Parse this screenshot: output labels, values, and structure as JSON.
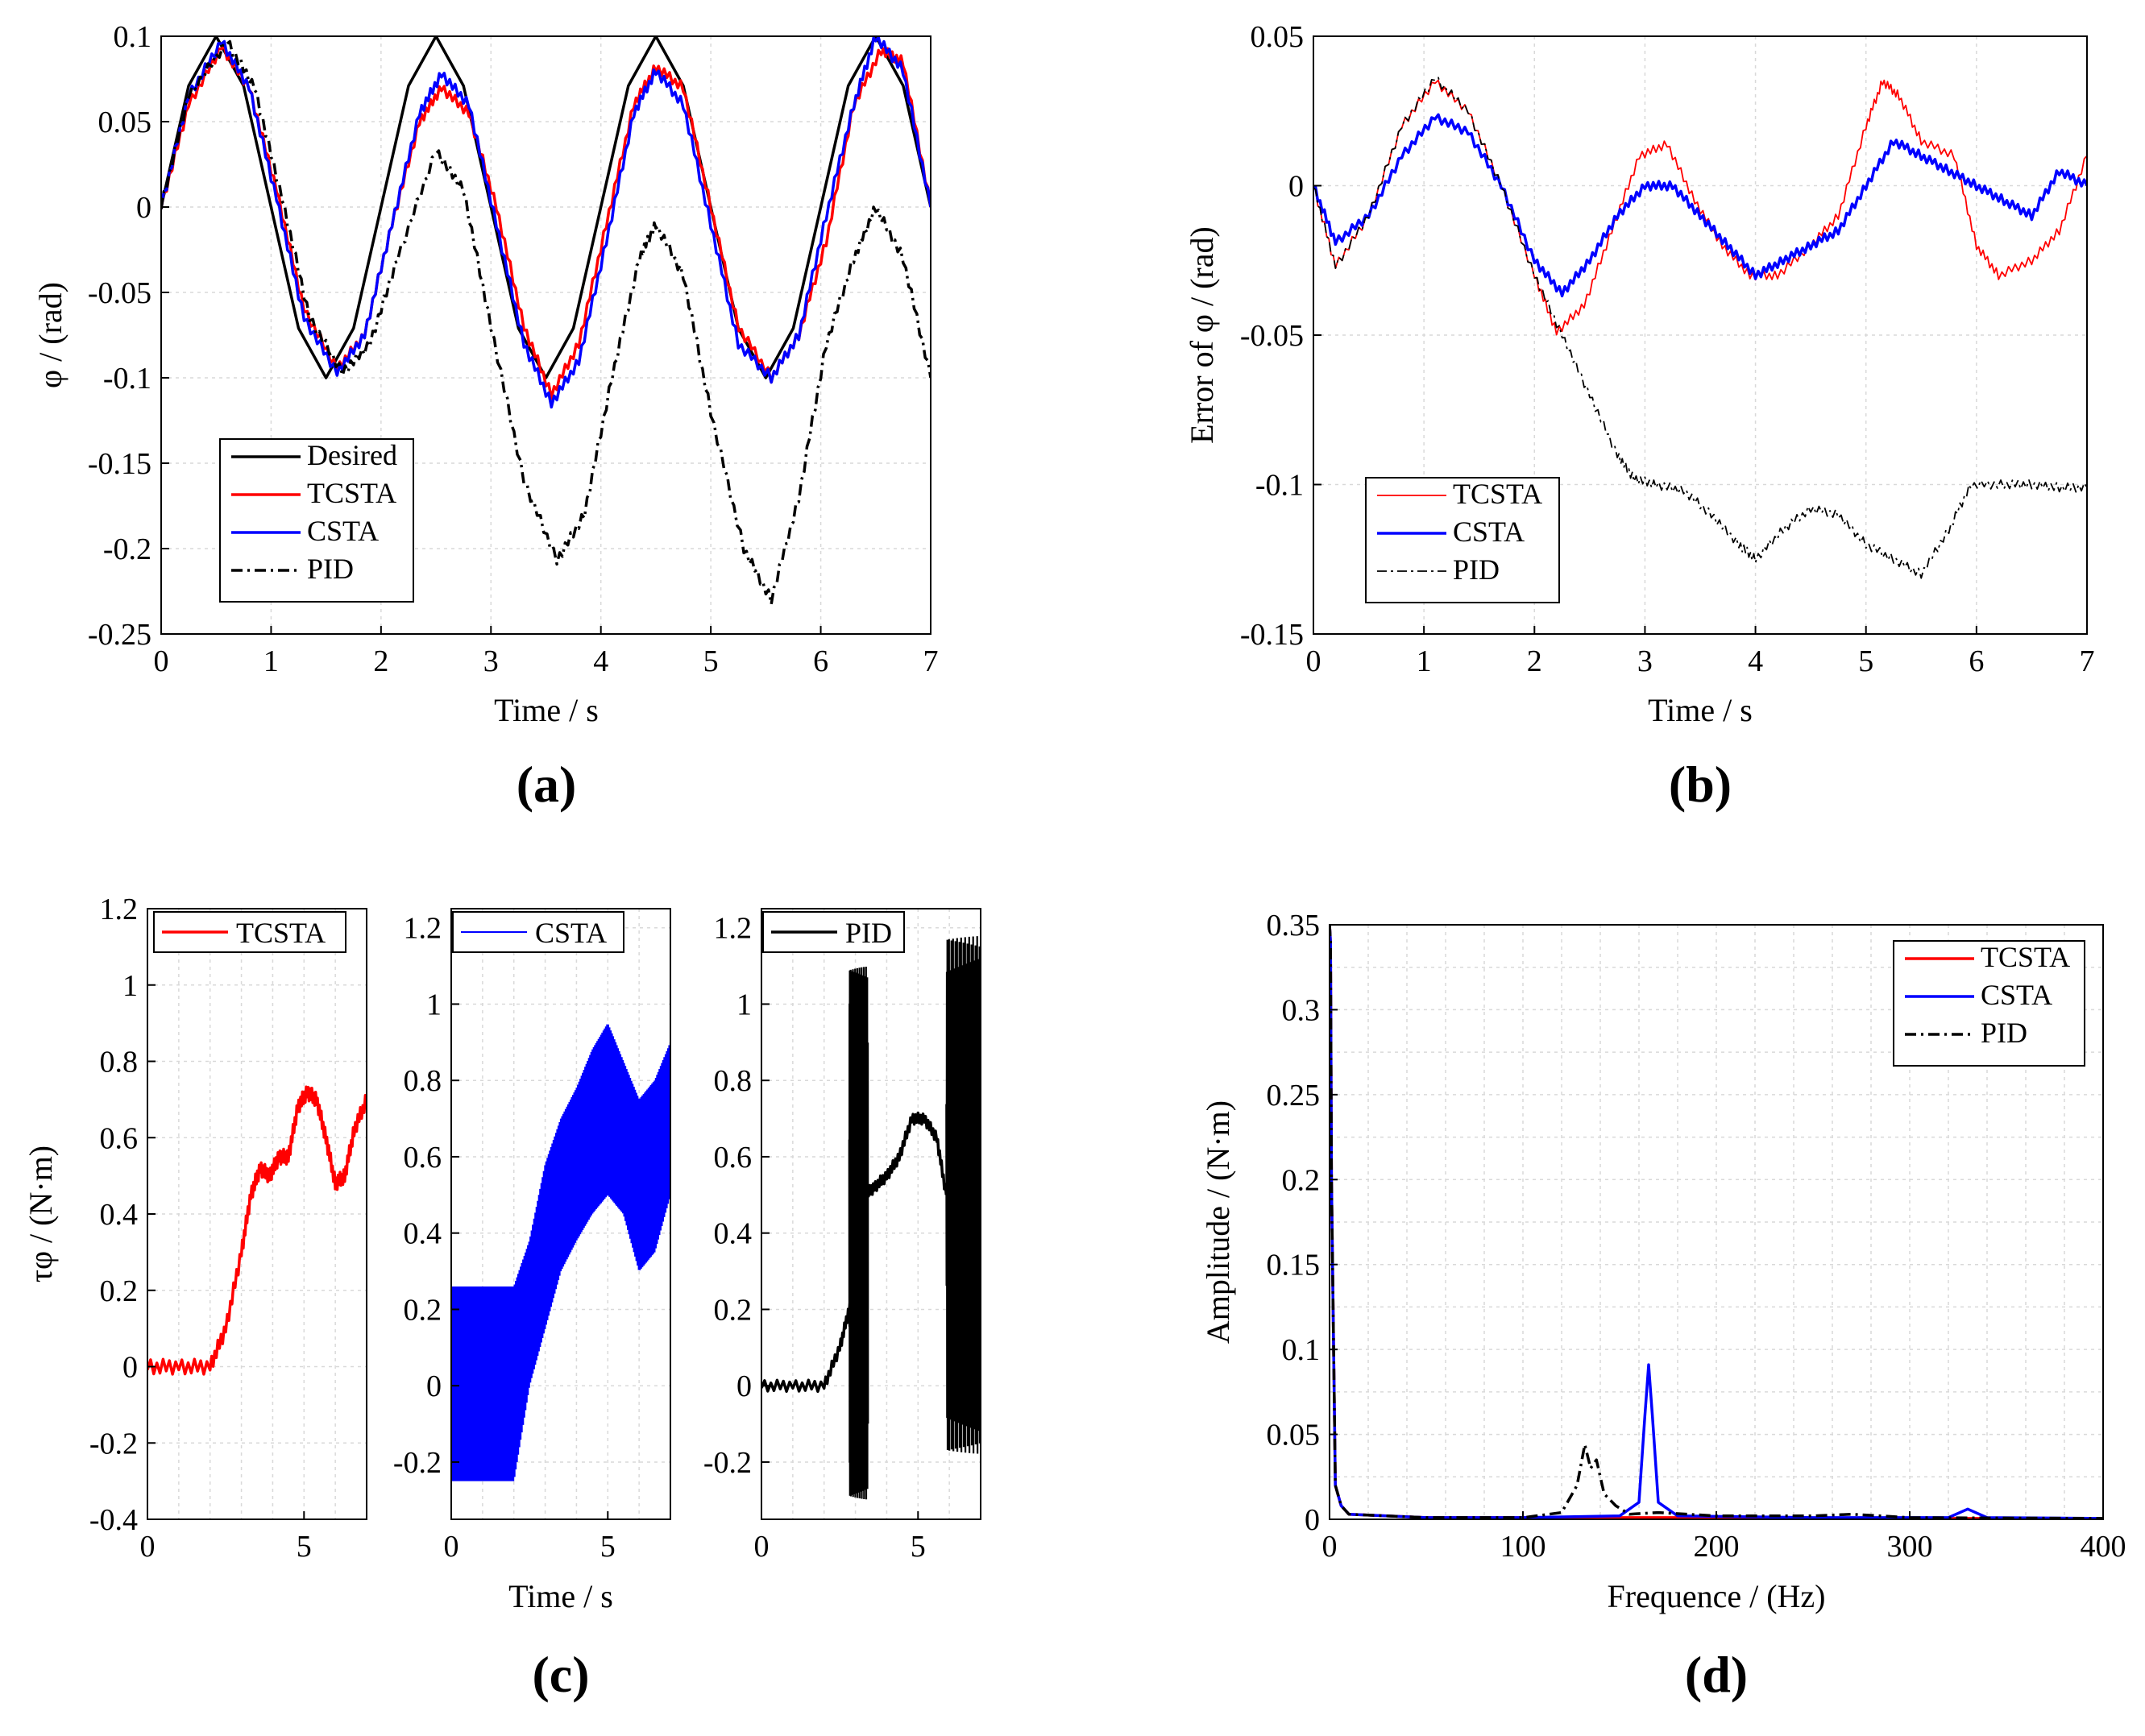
{
  "figure": {
    "panel_labels": [
      "(a)",
      "(b)",
      "(c)",
      "(d)"
    ]
  },
  "colors": {
    "TCSTA": "#ff0000",
    "CSTA": "#0000ff",
    "PID": "#000000",
    "Desired": "#000000"
  },
  "chart_data": [
    {
      "id": "a",
      "type": "line",
      "xlabel": "Time / s",
      "ylabel": "φ / (rad)",
      "xlim": [
        0,
        7
      ],
      "ylim": [
        -0.25,
        0.1
      ],
      "xticks": [
        0,
        1,
        2,
        3,
        4,
        5,
        6,
        7
      ],
      "yticks": [
        0.1,
        0.05,
        0,
        -0.05,
        -0.1,
        -0.15,
        -0.2,
        -0.25
      ],
      "ytick_labels": [
        "0.1",
        "0.05",
        "0",
        "-0.05",
        "-0.1",
        "-0.15",
        "-0.2",
        "-0.25"
      ],
      "legend": [
        "Desired",
        "TCSTA",
        "CSTA",
        "PID"
      ],
      "legend_position": "lower-left",
      "series": [
        {
          "name": "Desired",
          "style": "solid",
          "x": [
            0,
            0.25,
            0.5,
            0.75,
            1,
            1.25,
            1.5,
            1.75,
            2,
            2.25,
            2.5,
            2.75,
            3,
            3.25,
            3.5,
            3.75,
            4,
            4.25,
            4.5,
            4.75,
            5,
            5.25,
            5.5,
            5.75,
            6,
            6.25,
            6.5,
            6.75,
            7
          ],
          "y": [
            0,
            0.071,
            0.1,
            0.071,
            0,
            -0.071,
            -0.1,
            -0.071,
            0,
            0.071,
            0.1,
            0.071,
            0,
            -0.071,
            -0.1,
            -0.071,
            0,
            0.071,
            0.1,
            0.071,
            0,
            -0.071,
            -0.1,
            -0.071,
            0,
            0.071,
            0.1,
            0.071,
            0
          ]
        },
        {
          "name": "TCSTA",
          "style": "solid",
          "x": [
            0,
            0.25,
            0.55,
            0.8,
            1.05,
            1.3,
            1.6,
            1.85,
            2.1,
            2.35,
            2.55,
            2.8,
            3.05,
            3.3,
            3.55,
            3.8,
            4.05,
            4.3,
            4.5,
            4.75,
            5,
            5.25,
            5.55,
            5.8,
            6.05,
            6.3,
            6.55,
            6.75,
            7
          ],
          "y": [
            0,
            0.06,
            0.094,
            0.07,
            0.01,
            -0.06,
            -0.095,
            -0.075,
            -0.01,
            0.05,
            0.07,
            0.055,
            0.0,
            -0.07,
            -0.11,
            -0.08,
            -0.01,
            0.06,
            0.082,
            0.07,
            0.0,
            -0.07,
            -0.1,
            -0.075,
            -0.02,
            0.06,
            0.092,
            0.085,
            0.0
          ]
        },
        {
          "name": "CSTA",
          "style": "solid",
          "x": [
            0,
            0.25,
            0.55,
            0.8,
            1.05,
            1.3,
            1.6,
            1.85,
            2.1,
            2.35,
            2.55,
            2.8,
            3.05,
            3.3,
            3.55,
            3.8,
            4.05,
            4.3,
            4.5,
            4.75,
            5,
            5.25,
            5.55,
            5.8,
            6.05,
            6.3,
            6.5,
            6.75,
            7
          ],
          "y": [
            0,
            0.065,
            0.097,
            0.07,
            0.005,
            -0.065,
            -0.097,
            -0.075,
            -0.01,
            0.055,
            0.078,
            0.06,
            -0.01,
            -0.08,
            -0.115,
            -0.09,
            -0.02,
            0.055,
            0.08,
            0.06,
            -0.01,
            -0.08,
            -0.1,
            -0.075,
            -0.005,
            0.06,
            0.1,
            0.08,
            0.0
          ]
        },
        {
          "name": "PID",
          "style": "dashdot",
          "x": [
            0,
            0.25,
            0.6,
            0.85,
            1.1,
            1.35,
            1.65,
            1.9,
            2.15,
            2.5,
            2.75,
            3.0,
            3.3,
            3.6,
            3.85,
            4.1,
            4.35,
            4.5,
            4.75,
            5.0,
            5.3,
            5.55,
            5.8,
            6.05,
            6.3,
            6.5,
            6.75,
            7
          ],
          "y": [
            0,
            0.065,
            0.097,
            0.07,
            0.005,
            -0.065,
            -0.097,
            -0.08,
            -0.03,
            0.033,
            0.01,
            -0.07,
            -0.16,
            -0.207,
            -0.18,
            -0.1,
            -0.03,
            -0.01,
            -0.04,
            -0.12,
            -0.2,
            -0.23,
            -0.17,
            -0.08,
            -0.03,
            0,
            -0.03,
            -0.1
          ]
        }
      ]
    },
    {
      "id": "b",
      "type": "line",
      "xlabel": "Time / s",
      "ylabel": "Error of φ / (rad)",
      "xlim": [
        0,
        7
      ],
      "ylim": [
        -0.15,
        0.05
      ],
      "xticks": [
        0,
        1,
        2,
        3,
        4,
        5,
        6,
        7
      ],
      "yticks": [
        0.05,
        0,
        -0.05,
        -0.1,
        -0.15
      ],
      "ytick_labels": [
        "0.05",
        "0",
        "-0.05",
        "-0.1",
        "-0.15"
      ],
      "legend": [
        "TCSTA",
        "CSTA",
        "PID"
      ],
      "legend_position": "lower-left",
      "series": [
        {
          "name": "TCSTA",
          "style": "solid-thin",
          "x": [
            0,
            0.2,
            0.5,
            0.8,
            1.1,
            1.4,
            1.7,
            2.0,
            2.2,
            2.45,
            2.7,
            2.95,
            3.2,
            3.45,
            3.7,
            3.95,
            4.2,
            4.5,
            4.75,
            5.0,
            5.15,
            5.3,
            5.5,
            5.8,
            6.0,
            6.2,
            6.5,
            6.75,
            7
          ],
          "y": [
            0,
            -0.027,
            -0.01,
            0.02,
            0.035,
            0.025,
            0.0,
            -0.03,
            -0.049,
            -0.04,
            -0.015,
            0.01,
            0.014,
            -0.005,
            -0.02,
            -0.03,
            -0.03,
            -0.02,
            -0.01,
            0.02,
            0.035,
            0.03,
            0.015,
            0.01,
            -0.02,
            -0.03,
            -0.025,
            -0.015,
            0.01
          ]
        },
        {
          "name": "CSTA",
          "style": "solid",
          "x": [
            0,
            0.2,
            0.5,
            0.8,
            1.1,
            1.4,
            1.7,
            2.0,
            2.25,
            2.5,
            2.75,
            3.0,
            3.25,
            3.5,
            3.75,
            4.0,
            4.25,
            4.5,
            4.75,
            5.0,
            5.25,
            5.5,
            5.75,
            6.0,
            6.25,
            6.5,
            6.75,
            7
          ],
          "y": [
            0,
            -0.019,
            -0.01,
            0.01,
            0.023,
            0.018,
            0.0,
            -0.025,
            -0.036,
            -0.025,
            -0.01,
            0.0,
            0.0,
            -0.01,
            -0.02,
            -0.03,
            -0.025,
            -0.02,
            -0.015,
            0.0,
            0.015,
            0.01,
            0.005,
            0.0,
            -0.005,
            -0.01,
            0.005,
            0.0
          ]
        },
        {
          "name": "PID",
          "style": "dashdot-thin",
          "x": [
            0,
            0.2,
            0.5,
            0.8,
            1.1,
            1.4,
            1.7,
            2.0,
            2.25,
            2.5,
            2.75,
            2.9,
            3.1,
            3.35,
            3.6,
            3.85,
            4.0,
            4.25,
            4.5,
            4.75,
            5.0,
            5.25,
            5.5,
            5.75,
            5.95,
            6.25,
            6.5,
            6.75,
            7
          ],
          "y": [
            0,
            -0.027,
            -0.01,
            0.02,
            0.036,
            0.025,
            0.0,
            -0.03,
            -0.05,
            -0.07,
            -0.09,
            -0.098,
            -0.1,
            -0.102,
            -0.11,
            -0.12,
            -0.125,
            -0.115,
            -0.108,
            -0.11,
            -0.12,
            -0.125,
            -0.13,
            -0.115,
            -0.1,
            -0.1,
            -0.1,
            -0.101,
            -0.101
          ]
        }
      ]
    },
    {
      "id": "c",
      "type": "line",
      "xlabel": "Time / s",
      "ylabel": "τφ / (N·m)",
      "subplots": [
        {
          "name": "TCSTA",
          "xlim": [
            0,
            7
          ],
          "ylim": [
            -0.4,
            1.2
          ],
          "xticks": [
            0,
            5
          ],
          "yticks": [
            1.2,
            1,
            0.8,
            0.6,
            0.4,
            0.2,
            0,
            -0.2,
            -0.4
          ],
          "ytick_labels": [
            "1.2",
            "1",
            "0.8",
            "0.6",
            "0.4",
            "0.2",
            "0",
            "-0.2",
            "-0.4"
          ],
          "x": [
            0,
            1,
            2,
            2.5,
            3,
            3.3,
            3.6,
            3.9,
            4.2,
            4.5,
            4.8,
            5.1,
            5.4,
            5.7,
            6.0,
            6.3,
            6.6,
            7
          ],
          "y": [
            0,
            0,
            0,
            0.1,
            0.3,
            0.45,
            0.52,
            0.5,
            0.55,
            0.55,
            0.68,
            0.72,
            0.7,
            0.6,
            0.48,
            0.5,
            0.62,
            0.7
          ]
        },
        {
          "name": "CSTA",
          "xlim": [
            0,
            7
          ],
          "ylim": [
            -0.35,
            1.25
          ],
          "xticks": [
            0,
            5
          ],
          "yticks": [
            1.2,
            1,
            0.8,
            0.6,
            0.4,
            0.2,
            0,
            -0.2
          ],
          "ytick_labels": [
            "1.2",
            "1",
            "0.8",
            "0.6",
            "0.4",
            "0.2",
            "0",
            "-0.2"
          ],
          "band_x": [
            0,
            1,
            2,
            2.5,
            3,
            3.5,
            4,
            4.5,
            5,
            5.5,
            6,
            6.5,
            7
          ],
          "band_upper": [
            0.26,
            0.26,
            0.26,
            0.38,
            0.58,
            0.7,
            0.78,
            0.88,
            0.95,
            0.85,
            0.75,
            0.8,
            0.9
          ],
          "band_lower": [
            -0.25,
            -0.25,
            -0.25,
            0.0,
            0.15,
            0.3,
            0.38,
            0.45,
            0.5,
            0.45,
            0.3,
            0.35,
            0.5
          ]
        },
        {
          "name": "PID",
          "xlim": [
            0,
            7
          ],
          "ylim": [
            -0.35,
            1.25
          ],
          "xticks": [
            0,
            5
          ],
          "yticks": [
            1.2,
            1,
            0.8,
            0.6,
            0.4,
            0.2,
            0,
            -0.2
          ],
          "ytick_labels": [
            "1.2",
            "1",
            "0.8",
            "0.6",
            "0.4",
            "0.2",
            "0",
            "-0.2"
          ],
          "x": [
            0,
            1,
            2,
            2.5,
            2.8,
            3.3,
            3.6,
            4.0,
            4.4,
            4.8,
            5.2,
            5.6,
            5.9
          ],
          "y": [
            0,
            0,
            0,
            0.1,
            0.2,
            0.5,
            0.52,
            0.55,
            0.6,
            0.7,
            0.7,
            0.65,
            0.5
          ],
          "osc": [
            {
              "x0": 2.8,
              "x1": 3.4,
              "lo": -0.3,
              "hi": 1.1
            },
            {
              "x0": 5.9,
              "x1": 7.0,
              "lo": -0.18,
              "hi": 1.18
            }
          ]
        }
      ]
    },
    {
      "id": "d",
      "type": "line",
      "xlabel": "Frequence / (Hz)",
      "ylabel": "Amplitude / (N·m)",
      "xlim": [
        0,
        400
      ],
      "ylim": [
        0,
        0.35
      ],
      "xticks": [
        0,
        100,
        200,
        300,
        400
      ],
      "yticks": [
        0.35,
        0.3,
        0.25,
        0.2,
        0.15,
        0.1,
        0.05,
        0
      ],
      "ytick_labels": [
        "0.35",
        "0.3",
        "0.25",
        "0.2",
        "0.15",
        "0.1",
        "0.05",
        "0"
      ],
      "legend": [
        "TCSTA",
        "CSTA",
        "PID"
      ],
      "legend_position": "top-right",
      "series": [
        {
          "name": "TCSTA",
          "style": "solid",
          "x": [
            0,
            0.5,
            1,
            3,
            6,
            10,
            50,
            100,
            200,
            300,
            400
          ],
          "y": [
            0.35,
            0.34,
            0.2,
            0.02,
            0.008,
            0.003,
            0.001,
            0.001,
            0.001,
            0.0005,
            0.0005
          ]
        },
        {
          "name": "CSTA",
          "style": "solid",
          "x": [
            0,
            0.5,
            1,
            3,
            6,
            10,
            50,
            100,
            150,
            160,
            163,
            165,
            167,
            170,
            180,
            250,
            320,
            330,
            340,
            400
          ],
          "y": [
            0.35,
            0.34,
            0.2,
            0.02,
            0.008,
            0.003,
            0.001,
            0.001,
            0.002,
            0.01,
            0.06,
            0.091,
            0.06,
            0.01,
            0.002,
            0.001,
            0.001,
            0.006,
            0.001,
            0.0005
          ]
        },
        {
          "name": "PID",
          "style": "dashdot",
          "x": [
            0,
            0.5,
            1,
            3,
            6,
            10,
            50,
            100,
            120,
            128,
            132,
            135,
            138,
            142,
            148,
            155,
            170,
            200,
            250,
            270,
            300,
            400
          ],
          "y": [
            0.35,
            0.34,
            0.2,
            0.02,
            0.008,
            0.003,
            0.001,
            0.001,
            0.004,
            0.02,
            0.044,
            0.03,
            0.035,
            0.015,
            0.008,
            0.003,
            0.004,
            0.002,
            0.002,
            0.003,
            0.001,
            0.0005
          ]
        }
      ]
    }
  ]
}
